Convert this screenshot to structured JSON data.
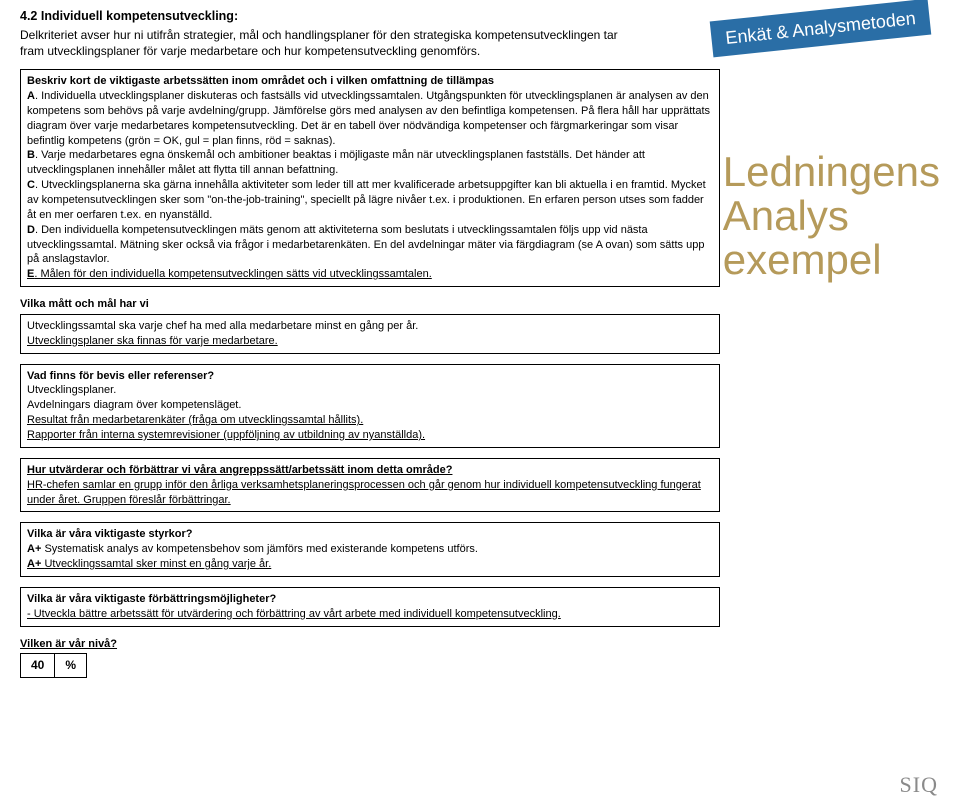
{
  "heading": "4.2 Individuell kompetensutveckling:",
  "intro": "Delkriteriet avser hur ni utifrån strategier, mål och handlingsplaner för den strategiska kompetensutvecklingen tar fram utvecklingsplaner för varje medarbetare och hur kompetensutveckling genomförs.",
  "badge": "Enkät & Analysmetoden",
  "sideTitle1": "Ledningens",
  "sideTitle2": "Analys",
  "sideTitle3": "exempel",
  "box1": {
    "q": "Beskriv kort de viktigaste arbetssätten inom området och i vilken omfattning de tillämpas",
    "a_lead": "A",
    "a_text": ". Individuella utvecklingsplaner diskuteras och fastsälls vid utvecklingssamtalen. Utgångspunkten för utvecklingsplanen är analysen av den kompetens som behövs på varje avdelning/grupp. Jämförelse görs med analysen av den befintliga kompetensen. På flera håll har upprättats diagram över varje medarbetares kompetensutveckling. Det är en tabell över nödvändiga kompetenser och färgmarkeringar som visar befintlig kompetens (grön = OK, gul = plan finns, röd = saknas).",
    "b_lead": "B",
    "b_text": ". Varje medarbetares egna önskemål och ambitioner beaktas i möjligaste mån när utvecklingsplanen fastställs. Det händer att utvecklingsplanen innehåller målet att flytta till annan befattning.",
    "c_lead": "C",
    "c_text": ". Utvecklingsplanerna ska gärna innehålla aktiviteter som leder till att mer kvalificerade arbetsuppgifter kan bli aktuella i en framtid. Mycket av kompetensutvecklingen sker som \"on-the-job-training\", speciellt på lägre nivåer t.ex. i produktionen. En erfaren person utses som fadder åt en mer oerfaren t.ex. en nyanställd.",
    "d_lead": "D",
    "d_text": ". Den individuella kompetensutvecklingen mäts genom att aktiviteterna som beslutats i utvecklingssamtalen följs upp vid nästa utvecklingssamtal. Mätning sker också via frågor i medarbetarenkäten. En del avdelningar mäter via färgdiagram (se A ovan) som sätts upp på anslagstavlor.",
    "e_lead": "E",
    "e_text": ". Målen för den individuella kompetensutvecklingen sätts vid utvecklingssamtalen."
  },
  "box2": {
    "label": "Vilka mått och mål har vi",
    "l1": "Utvecklingssamtal ska varje chef ha med alla medarbetare minst en gång per år.",
    "l2": "Utvecklingsplaner ska finnas för varje medarbetare."
  },
  "box3": {
    "q": "Vad finns för bevis eller referenser?",
    "l1": "Utvecklingsplaner.",
    "l2": "Avdelningars diagram över kompetensläget.",
    "l3": "Resultat från medarbetarenkäter (fråga om utvecklingssamtal hållits).",
    "l4": "Rapporter från interna systemrevisioner (uppföljning av utbildning av nyanställda)."
  },
  "box4": {
    "q": "Hur utvärderar och förbättrar vi våra angreppssätt/arbetssätt inom detta område?",
    "l1": "HR-chefen samlar en grupp inför den årliga verksamhetsplaneringsprocessen och går genom hur individuell kompetensutveckling fungerat under året. Gruppen föreslår förbättringar."
  },
  "box5": {
    "q": "Vilka är våra viktigaste styrkor?",
    "a1p": "A+ ",
    "a1": "Systematisk analys av kompetensbehov som jämförs med existerande kompetens utförs.",
    "a2p": "A+ ",
    "a2": "Utvecklingssamtal sker minst en gång varje år."
  },
  "box6": {
    "q": "Vilka är våra viktigaste förbättringsmöjligheter?",
    "l1": "- Utveckla bättre arbetssätt för utvärdering och förbättring av vårt arbete med individuell kompetensutveckling."
  },
  "score": {
    "label": "Vilken är vår nivå?",
    "value": "40",
    "unit": "%"
  },
  "logo": "SIQ"
}
